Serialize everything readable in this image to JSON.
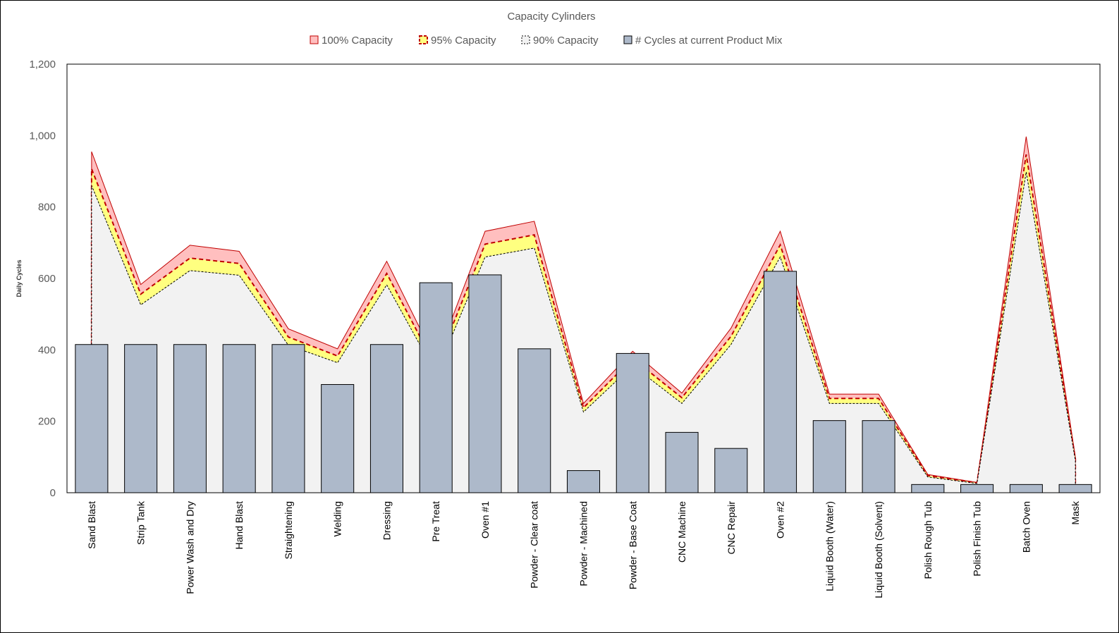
{
  "chart_data": {
    "type": "area+bar",
    "title": "Capacity Cylinders",
    "xlabel": "",
    "ylabel": "Daily Cycles",
    "ylim": [
      0,
      1200
    ],
    "yticks": [
      0,
      200,
      400,
      600,
      800,
      1000,
      1200
    ],
    "ytick_labels": [
      "0",
      "200",
      "400",
      "600",
      "800",
      "1,000",
      "1,200"
    ],
    "grid": false,
    "legend_position": "top",
    "categories": [
      "Sand Blast",
      "Strip Tank",
      "Power Wash and Dry",
      "Hand Blast",
      "Straightening",
      "Welding",
      "Dressing",
      "Pre Treat",
      "Oven #1",
      "Powder - Clear coat",
      "Powder - Machined",
      "Powder - Base Coat",
      "CNC Machine",
      "CNC Repair",
      "Oven #2",
      "Liquid Booth (Water)",
      "Liquid Booth (Solvent)",
      "Polish Rough Tub",
      "Polish Finish Tub",
      "Batch Oven",
      "Mask"
    ],
    "series": [
      {
        "name": "100% Capacity",
        "kind": "area",
        "fill": "#ffbfbf",
        "stroke": "#c00000",
        "dash": "solid",
        "values": [
          955,
          583,
          693,
          676,
          459,
          403,
          648,
          370,
          732,
          760,
          250,
          396,
          279,
          461,
          732,
          276,
          276,
          51,
          29,
          997,
          100
        ]
      },
      {
        "name": "95% Capacity",
        "kind": "area",
        "fill": "#ffff80",
        "stroke": "#c00000",
        "dash": "dashed",
        "values": [
          907,
          556,
          657,
          642,
          436,
          383,
          614,
          352,
          696,
          722,
          238,
          376,
          266,
          438,
          694,
          264,
          264,
          48,
          28,
          947,
          95
        ]
      },
      {
        "name": "90% Capacity",
        "kind": "area",
        "fill": "#f2f2f2",
        "stroke": "#000000",
        "dash": "dotted",
        "values": [
          860,
          526,
          622,
          609,
          413,
          364,
          582,
          333,
          660,
          685,
          226,
          356,
          250,
          415,
          660,
          250,
          250,
          44,
          26,
          898,
          90
        ]
      },
      {
        "name": "# Cycles at current Product Mix",
        "kind": "bar",
        "fill": "#adb9ca",
        "stroke": "#000000",
        "values": [
          415,
          415,
          415,
          415,
          415,
          303,
          415,
          588,
          610,
          403,
          62,
          390,
          169,
          124,
          620,
          202,
          202,
          23,
          23,
          23,
          23
        ]
      }
    ]
  }
}
